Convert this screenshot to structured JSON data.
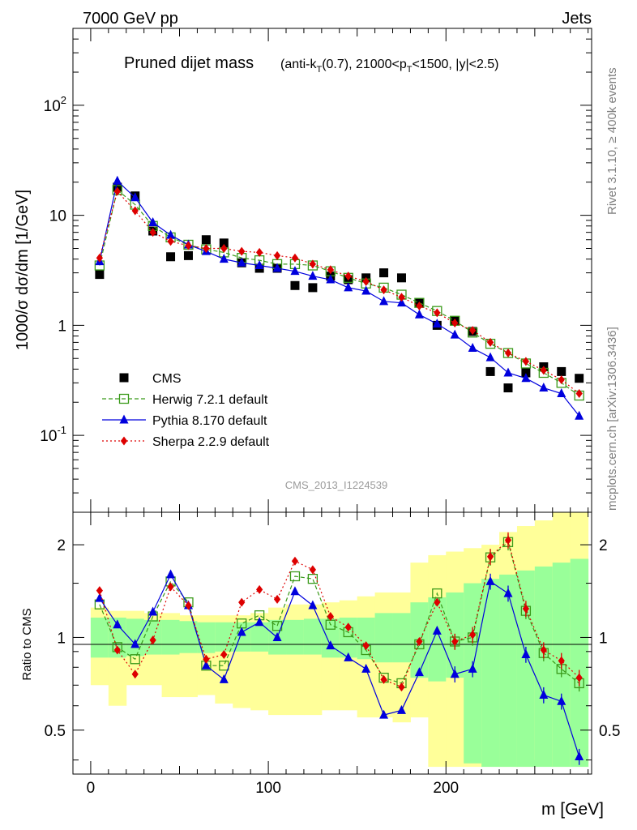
{
  "header": {
    "left": "7000 GeV pp",
    "right": "Jets",
    "side_top": "Rivet 3.1.10, ≥ 400k events",
    "side_bottom": "mcplots.cern.ch [arXiv:1306.3436]",
    "watermark": "CMS_2013_I1224539"
  },
  "chart_data": [
    {
      "type": "scatter",
      "title": "Pruned dijet mass",
      "subtitle": "(anti-k_T(0.7), 21000<p_T<1500, |y|<2.5)",
      "xlabel": "m [GeV]",
      "ylabel": "1000/σ dσ/dm [1/GeV]",
      "yscale": "log",
      "xlim": [
        -10,
        282
      ],
      "ylim": [
        0.02,
        500
      ],
      "xticks": [
        0,
        100,
        200
      ],
      "yticks": [
        0.1,
        1,
        10,
        100
      ],
      "ytick_labels": [
        "10^-1",
        "1",
        "10",
        "10^2"
      ],
      "legend_position": "lower-left",
      "series": [
        {
          "name": "CMS",
          "marker": "square",
          "color": "#000000",
          "x": [
            5,
            15,
            25,
            35,
            45,
            55,
            65,
            75,
            85,
            95,
            105,
            115,
            125,
            135,
            145,
            155,
            165,
            175,
            185,
            195,
            205,
            215,
            225,
            235,
            245,
            255,
            265,
            275
          ],
          "y": [
            2.9,
            18.0,
            15.0,
            7.2,
            4.2,
            4.3,
            6.0,
            5.6,
            3.7,
            3.3,
            3.3,
            2.3,
            2.2,
            2.8,
            2.6,
            2.7,
            3.0,
            2.7,
            1.6,
            1.0,
            1.1,
            0.88,
            0.38,
            0.27,
            0.37,
            0.42,
            0.38,
            0.33
          ]
        },
        {
          "name": "Herwig 7.2.1 default",
          "marker": "open-square",
          "color": "#3a9a1a",
          "x": [
            5,
            15,
            25,
            35,
            45,
            55,
            65,
            75,
            85,
            95,
            105,
            115,
            125,
            135,
            145,
            155,
            165,
            175,
            185,
            195,
            205,
            215,
            225,
            235,
            245,
            255,
            265,
            275
          ],
          "y": [
            3.5,
            17.0,
            12.5,
            8.0,
            6.3,
            5.4,
            4.9,
            4.6,
            4.1,
            3.9,
            3.6,
            3.6,
            3.5,
            3.1,
            2.7,
            2.4,
            2.2,
            1.9,
            1.6,
            1.35,
            1.1,
            0.86,
            0.68,
            0.56,
            0.45,
            0.37,
            0.3,
            0.23
          ]
        },
        {
          "name": "Pythia 8.170 default",
          "marker": "triangle",
          "color": "#0000dd",
          "x": [
            5,
            15,
            25,
            35,
            45,
            55,
            65,
            75,
            85,
            95,
            105,
            115,
            125,
            135,
            145,
            155,
            165,
            175,
            185,
            195,
            205,
            215,
            225,
            235,
            245,
            255,
            265,
            275
          ],
          "y": [
            3.8,
            20.5,
            14.5,
            8.6,
            6.6,
            5.4,
            4.7,
            4.0,
            3.7,
            3.5,
            3.3,
            3.1,
            2.8,
            2.6,
            2.2,
            2.05,
            1.65,
            1.6,
            1.25,
            1.03,
            0.82,
            0.62,
            0.51,
            0.37,
            0.33,
            0.27,
            0.24,
            0.15
          ]
        },
        {
          "name": "Sherpa 2.2.9 default",
          "marker": "diamond",
          "color": "#dd0000",
          "x": [
            5,
            15,
            25,
            35,
            45,
            55,
            65,
            75,
            85,
            95,
            105,
            115,
            125,
            135,
            145,
            155,
            165,
            175,
            185,
            195,
            205,
            215,
            225,
            235,
            245,
            255,
            265,
            275
          ],
          "y": [
            4.1,
            16.5,
            11.0,
            7.0,
            5.8,
            5.3,
            5.0,
            5.0,
            4.7,
            4.6,
            4.3,
            4.1,
            3.6,
            3.2,
            2.8,
            2.5,
            2.1,
            1.8,
            1.5,
            1.3,
            1.05,
            0.9,
            0.7,
            0.56,
            0.47,
            0.39,
            0.32,
            0.24
          ]
        }
      ]
    },
    {
      "type": "scatter",
      "ylabel": "Ratio to CMS",
      "xlabel": "m [GeV]",
      "yscale": "log",
      "xlim": [
        -10,
        282
      ],
      "ylim": [
        0.36,
        2.55
      ],
      "xticks": [
        0,
        100,
        200
      ],
      "yticks": [
        0.5,
        1,
        2
      ],
      "ytick_labels": [
        "0.5",
        "1",
        "2"
      ],
      "bands": {
        "x_edges": [
          0,
          10,
          20,
          30,
          40,
          50,
          60,
          70,
          80,
          90,
          100,
          110,
          120,
          130,
          140,
          150,
          160,
          170,
          180,
          190,
          200,
          210,
          220,
          230,
          240,
          250,
          260,
          270,
          280
        ],
        "stat_lo": [
          0.86,
          0.86,
          0.87,
          0.88,
          0.88,
          0.89,
          0.89,
          0.9,
          0.9,
          0.9,
          0.88,
          0.88,
          0.88,
          0.86,
          0.86,
          0.85,
          0.83,
          0.83,
          0.74,
          0.72,
          0.74,
          0.39,
          0.38,
          0.38,
          0.38,
          0.38,
          0.38,
          0.38
        ],
        "stat_hi": [
          1.16,
          1.16,
          1.15,
          1.14,
          1.14,
          1.13,
          1.12,
          1.12,
          1.12,
          1.12,
          1.14,
          1.14,
          1.15,
          1.15,
          1.16,
          1.16,
          1.2,
          1.2,
          1.3,
          1.35,
          1.4,
          1.5,
          1.55,
          1.6,
          1.65,
          1.7,
          1.75,
          1.8
        ],
        "syst_lo": [
          0.7,
          0.6,
          0.7,
          0.7,
          0.64,
          0.64,
          0.65,
          0.61,
          0.59,
          0.58,
          0.56,
          0.56,
          0.56,
          0.58,
          0.58,
          0.55,
          0.55,
          0.53,
          0.55,
          0.38,
          0.38,
          0.38,
          0.38,
          0.38,
          0.38,
          0.4,
          0.38,
          0.38
        ],
        "syst_hi": [
          1.25,
          1.22,
          1.22,
          1.2,
          1.2,
          1.18,
          1.18,
          1.18,
          1.18,
          1.2,
          1.25,
          1.28,
          1.28,
          1.3,
          1.32,
          1.36,
          1.4,
          1.4,
          1.75,
          1.85,
          1.9,
          1.95,
          2.0,
          2.2,
          2.3,
          2.4,
          2.55,
          2.55
        ]
      },
      "series": [
        {
          "name": "Herwig 7.2.1 default",
          "y": [
            1.28,
            0.93,
            0.85,
            1.17,
            1.52,
            1.3,
            0.81,
            0.81,
            1.11,
            1.18,
            1.09,
            1.58,
            1.55,
            1.1,
            1.04,
            0.91,
            0.74,
            0.71,
            0.95,
            1.39,
            0.97,
            1.0,
            1.82,
            2.04,
            1.22,
            0.89,
            0.79,
            0.71
          ]
        },
        {
          "name": "Pythia 8.170 default",
          "y": [
            1.34,
            1.1,
            0.95,
            1.21,
            1.6,
            1.27,
            0.81,
            0.73,
            1.04,
            1.12,
            1.0,
            1.41,
            1.27,
            0.94,
            0.86,
            0.79,
            0.56,
            0.58,
            0.77,
            1.05,
            0.76,
            0.79,
            1.52,
            1.39,
            0.88,
            0.65,
            0.62,
            0.41
          ]
        },
        {
          "name": "Sherpa 2.2.9 default",
          "y": [
            1.42,
            0.91,
            0.76,
            0.98,
            1.46,
            1.27,
            0.85,
            0.88,
            1.3,
            1.43,
            1.33,
            1.77,
            1.66,
            1.17,
            1.08,
            0.94,
            0.73,
            0.69,
            0.97,
            1.3,
            0.97,
            1.02,
            1.83,
            2.07,
            1.24,
            0.91,
            0.84,
            0.74
          ]
        }
      ]
    }
  ]
}
